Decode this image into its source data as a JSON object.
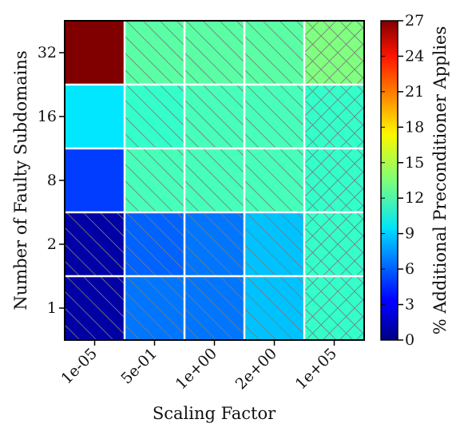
{
  "chart_data": {
    "type": "heatmap",
    "xlabel": "Scaling Factor",
    "ylabel": "Number of Faulty Subdomains",
    "x_categories": [
      "1e-05",
      "5e-01",
      "1e+00",
      "2e+00",
      "1e+05"
    ],
    "y_categories": [
      "32",
      "16",
      "8",
      "2",
      "1"
    ],
    "values": [
      [
        27,
        12.5,
        12.5,
        12.5,
        13.5
      ],
      [
        9.5,
        11.5,
        12,
        12,
        11.5
      ],
      [
        5,
        12,
        12,
        12,
        11.5
      ],
      [
        1,
        6,
        6.5,
        8.5,
        11.5
      ],
      [
        1,
        6.5,
        6.5,
        8.5,
        11.5
      ]
    ],
    "hatched": [
      [
        false,
        true,
        true,
        true,
        "cross"
      ],
      [
        false,
        true,
        true,
        true,
        "cross"
      ],
      [
        false,
        true,
        true,
        true,
        "cross"
      ],
      [
        true,
        true,
        true,
        true,
        "cross"
      ],
      [
        true,
        true,
        true,
        true,
        "cross"
      ]
    ],
    "colorbar": {
      "label": "% Additional Preconditioner Applies",
      "range": [
        0,
        27
      ],
      "ticks": [
        "0",
        "3",
        "6",
        "9",
        "12",
        "15",
        "18",
        "21",
        "24",
        "27"
      ],
      "colormap": "jet"
    },
    "grid": true
  }
}
